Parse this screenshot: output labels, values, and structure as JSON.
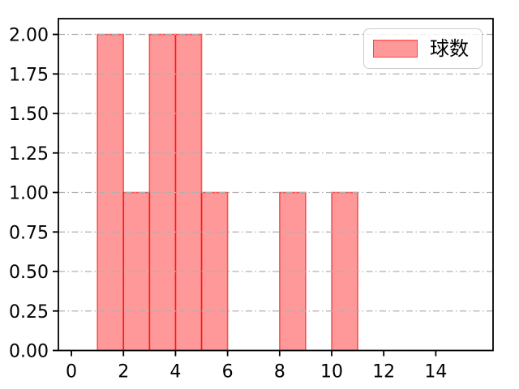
{
  "chart_data": {
    "type": "bar",
    "subtype": "histogram",
    "title": "",
    "xlabel": "",
    "ylabel": "",
    "bins": [
      {
        "range": [
          1,
          2
        ],
        "count": 2
      },
      {
        "range": [
          2,
          3
        ],
        "count": 1
      },
      {
        "range": [
          3,
          4
        ],
        "count": 2
      },
      {
        "range": [
          4,
          5
        ],
        "count": 2
      },
      {
        "range": [
          5,
          6
        ],
        "count": 1
      },
      {
        "range": [
          8,
          9
        ],
        "count": 1
      },
      {
        "range": [
          10,
          11
        ],
        "count": 1
      }
    ],
    "bin_width": 1,
    "xticks": [
      0,
      2,
      4,
      6,
      8,
      10,
      12,
      14
    ],
    "yticks": [
      "0.00",
      "0.25",
      "0.50",
      "0.75",
      "1.00",
      "1.25",
      "1.50",
      "1.75",
      "2.00"
    ],
    "xlim": [
      -0.5,
      16.2
    ],
    "ylim": [
      0,
      2.1
    ],
    "grid": {
      "axis": "y",
      "style": "dash-dot",
      "above_bars": true
    },
    "legend": {
      "label": "球数",
      "position": "upper-right"
    },
    "colors": {
      "bar_fill": "rgba(255,0,0,0.4)",
      "bar_fill_hex": "#ff9999",
      "bar_edge": "rgba(255,0,0,0.6)",
      "bar_edge_hex": "#ff6666",
      "grid": "#b0b0b0",
      "spine": "#000000",
      "legend_border": "#cccccc",
      "background": "#ffffff"
    }
  }
}
